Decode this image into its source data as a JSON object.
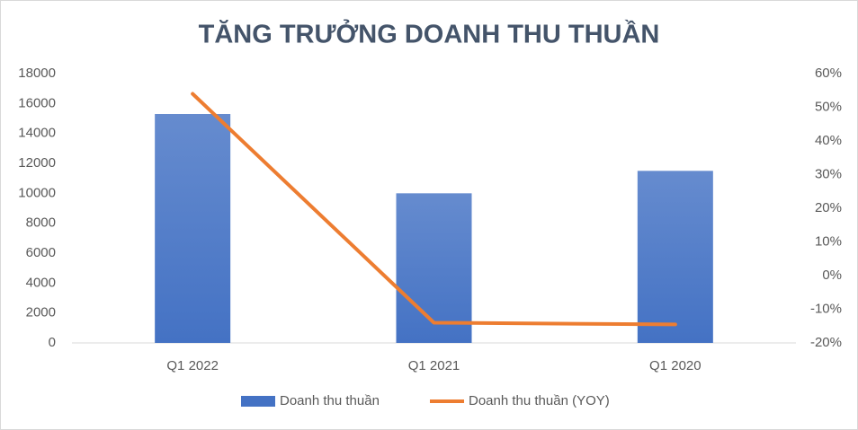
{
  "chart_data": {
    "type": "bar-line",
    "title": "TĂNG TRƯỞNG DOANH THU THUẦN",
    "categories": [
      "Q1 2022",
      "Q1 2021",
      "Q1 2020"
    ],
    "series": [
      {
        "name": "Doanh thu thuần",
        "type": "bar",
        "color": "#4472c4",
        "values": [
          15300,
          10000,
          11500
        ]
      },
      {
        "name": "Doanh thu thuần (YOY)",
        "type": "line",
        "color": "#ed7d31",
        "axis": "y2",
        "values": [
          54,
          -14,
          -14.5
        ]
      }
    ],
    "ylim": [
      0,
      18000
    ],
    "yticks": [
      0,
      2000,
      4000,
      6000,
      8000,
      10000,
      12000,
      14000,
      16000,
      18000
    ],
    "y2lim": [
      -20,
      60
    ],
    "y2ticks": [
      {
        "value": -20,
        "label": "-20%"
      },
      {
        "value": -10,
        "label": "-10%"
      },
      {
        "value": 0,
        "label": "0%"
      },
      {
        "value": 10,
        "label": "10%"
      },
      {
        "value": 20,
        "label": "20%"
      },
      {
        "value": 30,
        "label": "30%"
      },
      {
        "value": 40,
        "label": "40%"
      },
      {
        "value": 50,
        "label": "50%"
      },
      {
        "value": 60,
        "label": "60%"
      }
    ],
    "grid": false,
    "legend": "bottom"
  }
}
